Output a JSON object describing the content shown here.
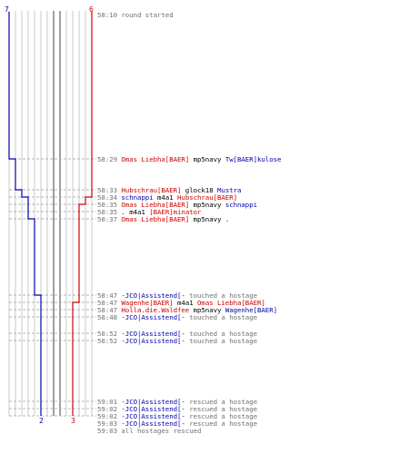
{
  "colors": {
    "red": "#cc0000",
    "blue": "#0000aa",
    "gray": "#707070",
    "black": "#000000"
  },
  "score_labels": {
    "top_left": "7",
    "top_right": "6",
    "bottom_blue": "2",
    "bottom_red": "3"
  },
  "events": [
    {
      "time": "58:10",
      "parts": [
        {
          "t": "round started",
          "c": "gray"
        }
      ]
    },
    {
      "time": "58:29",
      "parts": [
        {
          "t": "Omas Liebha[BAER]",
          "c": "red"
        },
        {
          "t": " mp5navy ",
          "c": "black"
        },
        {
          "t": "Tw[BAER]kulose",
          "c": "blue"
        }
      ]
    },
    {
      "time": "58:33",
      "parts": [
        {
          "t": "Hubschrau[BAER]",
          "c": "red"
        },
        {
          "t": " glock18 ",
          "c": "black"
        },
        {
          "t": "Mustra",
          "c": "blue"
        }
      ]
    },
    {
      "time": "58:34",
      "parts": [
        {
          "t": "schnappi",
          "c": "blue"
        },
        {
          "t": " m4a1 ",
          "c": "black"
        },
        {
          "t": "Hubschrau[BAER]",
          "c": "red"
        }
      ]
    },
    {
      "time": "58:35",
      "parts": [
        {
          "t": "Omas Liebha[BAER]",
          "c": "red"
        },
        {
          "t": " mp5navy ",
          "c": "black"
        },
        {
          "t": "schnappi",
          "c": "blue"
        }
      ]
    },
    {
      "time": "58:35",
      "parts": [
        {
          "t": ".",
          "c": "blue"
        },
        {
          "t": " m4a1 ",
          "c": "black"
        },
        {
          "t": "[BAER]minator",
          "c": "red"
        }
      ]
    },
    {
      "time": "58:37",
      "parts": [
        {
          "t": "Omas Liebha[BAER]",
          "c": "red"
        },
        {
          "t": " mp5navy ",
          "c": "black"
        },
        {
          "t": ".",
          "c": "blue"
        }
      ]
    },
    {
      "time": "58:47",
      "parts": [
        {
          "t": "-JCO|Assistend[-",
          "c": "blue"
        },
        {
          "t": " touched a hostage",
          "c": "gray"
        }
      ]
    },
    {
      "time": "58:47",
      "parts": [
        {
          "t": "Wagenhe[BAER]",
          "c": "red"
        },
        {
          "t": " m4a1 ",
          "c": "black"
        },
        {
          "t": "Omas Liebha[BAER]",
          "c": "red"
        }
      ]
    },
    {
      "time": "58:47",
      "parts": [
        {
          "t": "Holla.die.Waldfee",
          "c": "red"
        },
        {
          "t": " mp5navy ",
          "c": "black"
        },
        {
          "t": "Wagenhe[BAER]",
          "c": "blue"
        }
      ]
    },
    {
      "time": "58:48",
      "parts": [
        {
          "t": "-JCO|Assistend[-",
          "c": "blue"
        },
        {
          "t": " touched a hostage",
          "c": "gray"
        }
      ]
    },
    {
      "time": "58:52",
      "parts": [
        {
          "t": "-JCO|Assistend[-",
          "c": "blue"
        },
        {
          "t": " touched a hostage",
          "c": "gray"
        }
      ]
    },
    {
      "time": "58:52",
      "parts": [
        {
          "t": "-JCO|Assistend[-",
          "c": "blue"
        },
        {
          "t": " touched a hostage",
          "c": "gray"
        }
      ]
    },
    {
      "time": "59:01",
      "parts": [
        {
          "t": "-JCO|Assistend[-",
          "c": "blue"
        },
        {
          "t": " rescued a hostage",
          "c": "gray"
        }
      ]
    },
    {
      "time": "59:02",
      "parts": [
        {
          "t": "-JCO|Assistend[-",
          "c": "blue"
        },
        {
          "t": " rescued a hostage",
          "c": "gray"
        }
      ]
    },
    {
      "time": "59:02",
      "parts": [
        {
          "t": "-JCO|Assistend[-",
          "c": "blue"
        },
        {
          "t": " rescued a hostage",
          "c": "gray"
        }
      ]
    },
    {
      "time": "59:03",
      "parts": [
        {
          "t": "-JCO|Assistend[-",
          "c": "blue"
        },
        {
          "t": " rescued a hostage",
          "c": "gray"
        }
      ]
    },
    {
      "time": "59:03",
      "parts": [
        {
          "t": "all hostages rescued",
          "c": "gray"
        }
      ]
    }
  ]
}
